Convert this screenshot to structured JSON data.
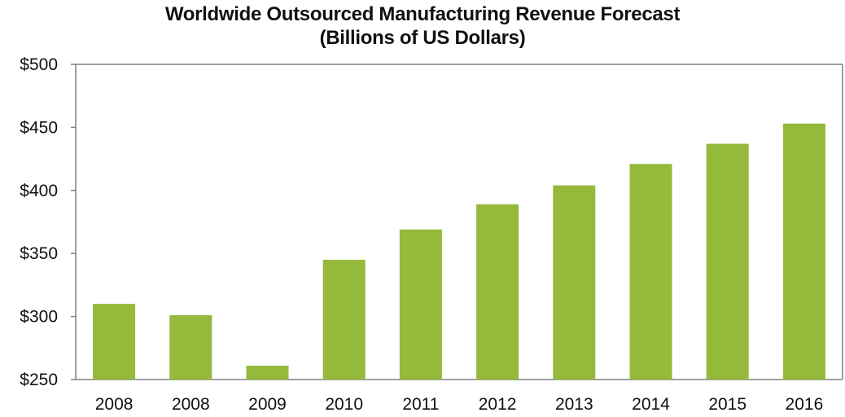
{
  "chart_data": {
    "type": "bar",
    "title": "Worldwide Outsourced Manufacturing Revenue Forecast",
    "subtitle": "(Billions of US Dollars)",
    "xlabel": "",
    "ylabel": "",
    "categories": [
      "2008",
      "2008",
      "2009",
      "2010",
      "2011",
      "2012",
      "2013",
      "2014",
      "2015",
      "2016"
    ],
    "values": [
      310,
      301,
      261,
      345,
      369,
      389,
      404,
      421,
      437,
      453
    ],
    "ylim": [
      250,
      500
    ],
    "yticks": [
      250,
      300,
      350,
      400,
      450,
      500
    ],
    "ytick_labels": [
      "$250",
      "$300",
      "$350",
      "$400",
      "$450",
      "$500"
    ],
    "grid": false,
    "legend": "none",
    "bar_color": "#95b93a"
  }
}
